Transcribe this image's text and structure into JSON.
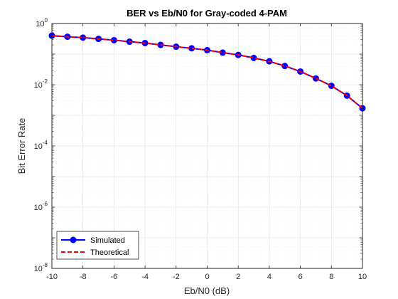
{
  "chart_data": {
    "type": "line",
    "title": "BER vs Eb/N0 for Gray-coded 4-PAM",
    "xlabel": "Eb/N0 (dB)",
    "ylabel": "Bit Error Rate",
    "xlim": [
      -10,
      10
    ],
    "ylim": [
      1e-08,
      1
    ],
    "yscale": "log",
    "grid": true,
    "minor_grid": true,
    "legend_position": "bottom-left",
    "x_ticks": [
      "-10",
      "-8",
      "-6",
      "-4",
      "-2",
      "0",
      "2",
      "4",
      "6",
      "8",
      "10"
    ],
    "y_ticks": [
      {
        "base": "10",
        "exp": "0"
      },
      {
        "base": "10",
        "exp": "-2"
      },
      {
        "base": "10",
        "exp": "-4"
      },
      {
        "base": "10",
        "exp": "-6"
      },
      {
        "base": "10",
        "exp": "-8"
      }
    ],
    "x": [
      -10,
      -9,
      -8,
      -7,
      -6,
      -5,
      -4,
      -3,
      -2,
      -1,
      0,
      1,
      2,
      3,
      4,
      5,
      6,
      7,
      8,
      9,
      10
    ],
    "series": [
      {
        "name": "Simulated",
        "style": "solid line with filled circle markers",
        "color": "#0000ff",
        "values": [
          0.4,
          0.37,
          0.345,
          0.315,
          0.285,
          0.255,
          0.23,
          0.2,
          0.175,
          0.155,
          0.135,
          0.112,
          0.094,
          0.075,
          0.058,
          0.041,
          0.027,
          0.016,
          0.0092,
          0.0044,
          0.0017
        ]
      },
      {
        "name": "Theoretical",
        "style": "dashed line",
        "color": "#ff0000",
        "values": [
          0.4,
          0.37,
          0.345,
          0.315,
          0.285,
          0.255,
          0.23,
          0.2,
          0.175,
          0.155,
          0.135,
          0.112,
          0.094,
          0.075,
          0.058,
          0.041,
          0.027,
          0.016,
          0.0092,
          0.0044,
          0.0017
        ]
      }
    ]
  }
}
